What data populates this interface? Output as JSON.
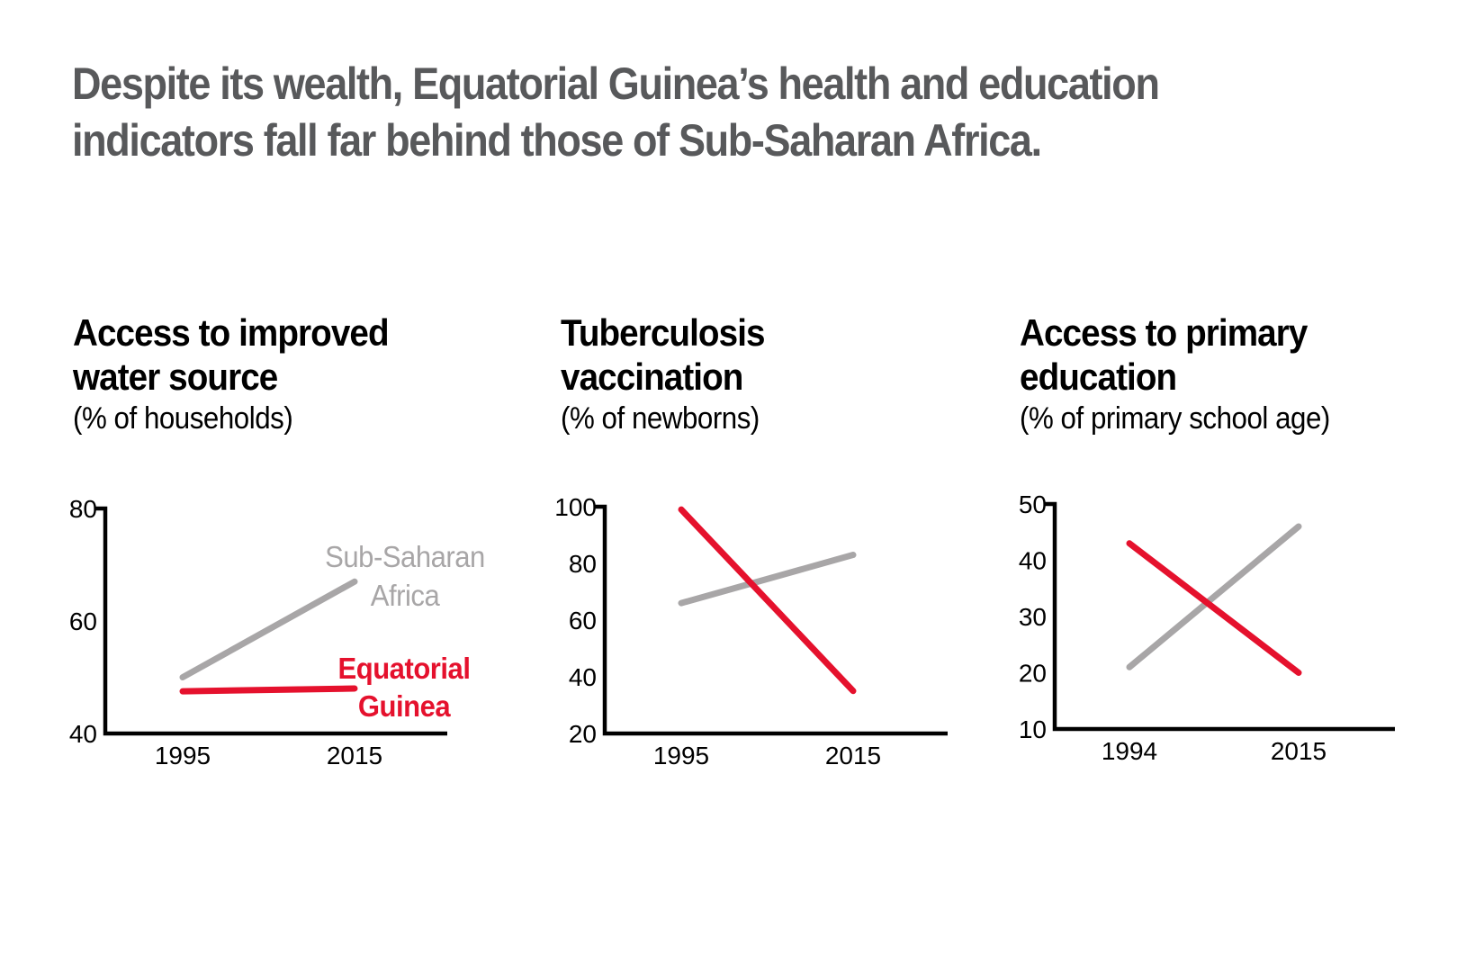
{
  "headline": {
    "line1": "Despite its wealth, Equatorial Guinea’s health and education",
    "line2": "indicators fall far behind those of Sub-Saharan Africa."
  },
  "palette": {
    "accent_red": "#e5112d",
    "line_gray": "#a8a6a7",
    "label_gray": "#a3a1a2",
    "headline_gray": "#58595b",
    "axis_black": "#000000",
    "background": "#ffffff"
  },
  "chart_data": [
    {
      "type": "line",
      "title": "Access to improved water source",
      "title_lines": [
        "Access to improved",
        "water source"
      ],
      "subtitle": "(% of households)",
      "xlabel": "",
      "ylabel": "",
      "x_tick_labels": [
        "1995",
        "2015"
      ],
      "ylim": [
        40,
        80
      ],
      "yticks": [
        80,
        60,
        40
      ],
      "grid": false,
      "legend_position": "inline-labels",
      "series": [
        {
          "name": "Sub-Saharan Africa",
          "label_lines": [
            "Sub-Saharan",
            "Africa"
          ],
          "color": "#a8a6a7",
          "values": [
            50,
            67
          ]
        },
        {
          "name": "Equatorial Guinea",
          "label_lines": [
            "Equatorial",
            "Guinea"
          ],
          "color": "#e5112d",
          "values": [
            47.5,
            48
          ]
        }
      ]
    },
    {
      "type": "line",
      "title": "Tuberculosis vaccination",
      "title_lines": [
        "Tuberculosis",
        "vaccination"
      ],
      "subtitle": "(% of newborns)",
      "xlabel": "",
      "ylabel": "",
      "x_tick_labels": [
        "1995",
        "2015"
      ],
      "ylim": [
        20,
        100
      ],
      "yticks": [
        100,
        80,
        60,
        40,
        20
      ],
      "grid": false,
      "legend_position": "none",
      "series": [
        {
          "name": "Sub-Saharan Africa",
          "color": "#a8a6a7",
          "values": [
            66,
            83
          ]
        },
        {
          "name": "Equatorial Guinea",
          "color": "#e5112d",
          "values": [
            99,
            35
          ]
        }
      ]
    },
    {
      "type": "line",
      "title": "Access to primary education",
      "title_lines": [
        "Access to primary",
        "education"
      ],
      "subtitle": "(% of primary school age)",
      "xlabel": "",
      "ylabel": "",
      "x_tick_labels": [
        "1994",
        "2015"
      ],
      "ylim": [
        10,
        50
      ],
      "yticks": [
        50,
        40,
        30,
        20,
        10
      ],
      "grid": false,
      "legend_position": "none",
      "series": [
        {
          "name": "Sub-Saharan Africa",
          "color": "#a8a6a7",
          "values": [
            21,
            46
          ]
        },
        {
          "name": "Equatorial Guinea",
          "color": "#e5112d",
          "values": [
            43,
            20
          ]
        }
      ]
    }
  ]
}
